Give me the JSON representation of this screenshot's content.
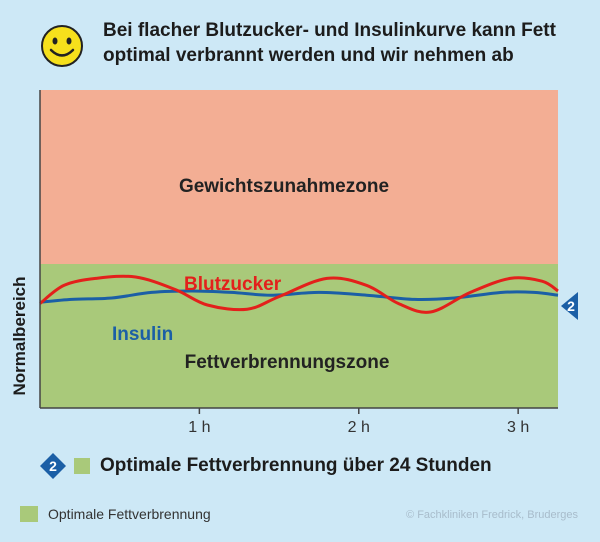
{
  "title": "Bei flacher Blutzucker- und Insulinkurve kann Fett optimal verbrannt werden und wir nehmen ab",
  "icons": {
    "smiley": "smiley-icon",
    "marker": "arrow-marker-icon"
  },
  "colors": {
    "upper_zone": "#f3ae94",
    "lower_zone": "#a9c97a",
    "blutzucker": "#e3201b",
    "insulin": "#1b5fa6"
  },
  "chart_data": {
    "type": "line",
    "ylabel": "Normalbereich",
    "x_ticks": [
      "1 h",
      "2 h",
      "3 h"
    ],
    "x_range_h": [
      0,
      3.25
    ],
    "zones": [
      {
        "label": "Gewichtszunahmezone",
        "color": "#f3ae94"
      },
      {
        "label": "Fettverbrennungszone",
        "color": "#a9c97a"
      }
    ],
    "series": [
      {
        "name": "Blutzucker",
        "color": "#e3201b",
        "x": [
          0,
          0.15,
          0.35,
          0.6,
          0.85,
          1.05,
          1.3,
          1.5,
          1.8,
          2.05,
          2.25,
          2.45,
          2.7,
          2.95,
          3.15,
          3.25
        ],
        "y": [
          0.05,
          0.7,
          0.95,
          1.0,
          0.55,
          0.0,
          -0.15,
          0.3,
          0.95,
          0.7,
          0.05,
          -0.25,
          0.45,
          0.95,
          0.85,
          0.5
        ]
      },
      {
        "name": "Insulin",
        "color": "#1b5fa6",
        "x": [
          0,
          0.2,
          0.45,
          0.7,
          0.95,
          1.2,
          1.45,
          1.75,
          2.05,
          2.35,
          2.6,
          2.9,
          3.1,
          3.25
        ],
        "y": [
          0.1,
          0.2,
          0.25,
          0.45,
          0.5,
          0.45,
          0.35,
          0.45,
          0.35,
          0.2,
          0.25,
          0.45,
          0.45,
          0.35
        ]
      }
    ]
  },
  "marker_right": "2",
  "bottom": {
    "marker": "2",
    "text": "Optimale Fettverbrennung über 24 Stunden"
  },
  "legend": {
    "label": "Optimale Fettverbrennung"
  },
  "credit": "© Fachkliniken Fredrick, Bruderges"
}
